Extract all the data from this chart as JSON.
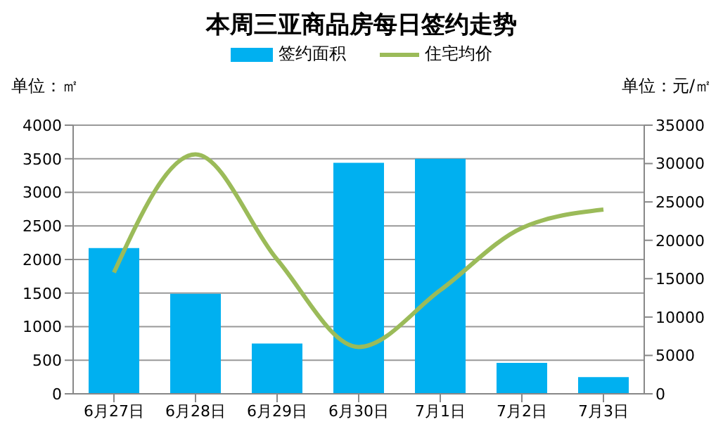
{
  "chart_data": {
    "type": "bar",
    "title": "本周三亚商品房每日签约走势",
    "ylabel": "单位：㎡",
    "y2label": "单位：元/㎡",
    "categories": [
      "6月27日",
      "6月28日",
      "6月29日",
      "6月30日",
      "7月1日",
      "7月2日",
      "7月3日"
    ],
    "series": [
      {
        "name": "签约面积",
        "color": "#00b0f0",
        "values": [
          2170,
          1490,
          750,
          3440,
          3500,
          460,
          250
        ]
      },
      {
        "name": "住宅均价",
        "type": "line",
        "axis": "y2",
        "color": "#9bbb59",
        "values": [
          15800,
          31200,
          17500,
          6100,
          13500,
          21600,
          24000
        ]
      }
    ],
    "ylim": [
      0,
      4000
    ],
    "yticks": [
      0,
      500,
      1000,
      1500,
      2000,
      2500,
      3000,
      3500,
      4000
    ],
    "y2lim": [
      0,
      35000
    ],
    "y2ticks": [
      0,
      5000,
      10000,
      15000,
      20000,
      25000,
      30000,
      35000
    ],
    "grid": "y",
    "legend": "top",
    "marker": "none",
    "line_style": "solid"
  }
}
